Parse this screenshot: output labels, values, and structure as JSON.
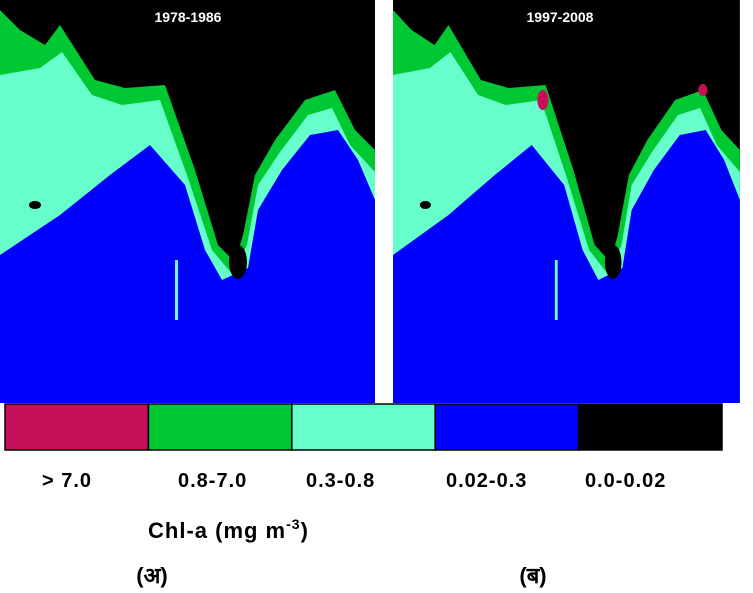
{
  "panels": [
    {
      "title": "1978-1986",
      "label": "(अ)"
    },
    {
      "title": "1997-2008",
      "label": "(ब)"
    }
  ],
  "legend": {
    "items": [
      {
        "label": "> 7.0",
        "color": "#c8105a"
      },
      {
        "label": "0.8-7.0",
        "color": "#00c832"
      },
      {
        "label": "0.3-0.8",
        "color": "#66ffcc"
      },
      {
        "label": "0.02-0.3",
        "color": "#0000ff"
      },
      {
        "label": "0.0-0.02",
        "color": "#000000"
      }
    ],
    "title": {
      "text": "Chl-a (mg m",
      "superscript": "-3",
      "suffix": ")"
    }
  }
}
